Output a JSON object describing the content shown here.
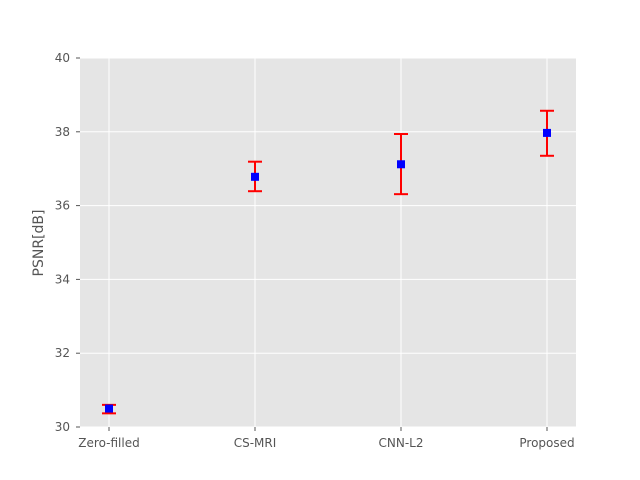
{
  "chart_data": {
    "type": "scatter",
    "title": "",
    "xlabel": "",
    "ylabel": "PSNR[dB]",
    "categories": [
      "Zero-filled",
      "CS-MRI",
      "CNN-L2",
      "Proposed"
    ],
    "values": [
      30.5,
      36.78,
      37.12,
      37.97
    ],
    "error_low": [
      30.37,
      36.39,
      36.31,
      37.35
    ],
    "error_high": [
      30.6,
      37.19,
      37.94,
      38.57
    ],
    "ylim": [
      30,
      40
    ],
    "yticks": [
      30,
      32,
      34,
      36,
      38,
      40
    ],
    "grid": true,
    "marker": "square",
    "colors": {
      "background": "#e5e5e5",
      "grid": "#ffffff",
      "marker": "#0000ff",
      "errorbar": "#ff0000",
      "text": "#555555"
    }
  }
}
